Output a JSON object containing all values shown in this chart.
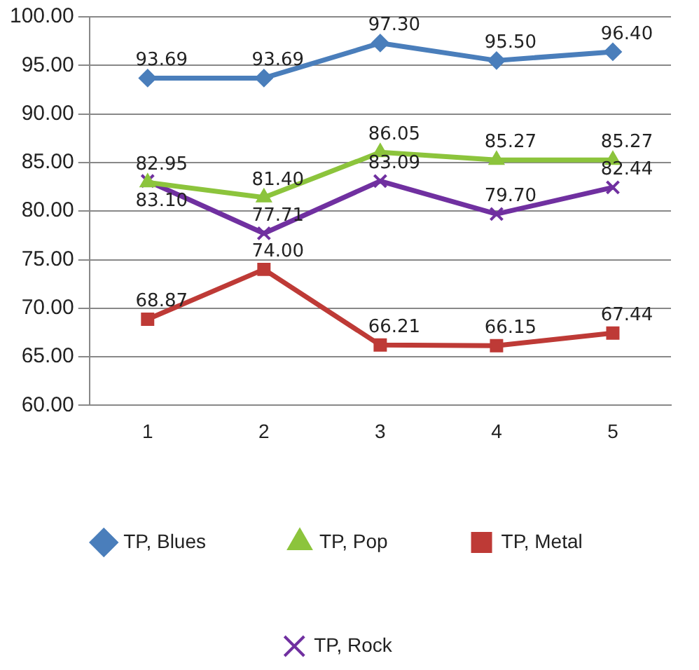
{
  "chart_data": {
    "type": "line",
    "categories": [
      "1",
      "2",
      "3",
      "4",
      "5"
    ],
    "series": [
      {
        "name": "TP, Blues",
        "color": "#4a7ebb",
        "marker": "diamond",
        "values": [
          93.69,
          93.69,
          97.3,
          95.5,
          96.4
        ],
        "value_labels": [
          "93.69",
          "93.69",
          "97.30",
          "95.50",
          "96.40"
        ]
      },
      {
        "name": "TP, Pop",
        "color": "#8cc43c",
        "marker": "triangle",
        "values": [
          82.95,
          81.4,
          86.05,
          85.27,
          85.27
        ],
        "value_labels": [
          "82.95",
          "81.40",
          "86.05",
          "85.27",
          "85.27"
        ]
      },
      {
        "name": "TP, Metal",
        "color": "#be3a36",
        "marker": "square",
        "values": [
          68.87,
          74.0,
          66.21,
          66.15,
          67.44
        ],
        "value_labels": [
          "68.87",
          "74.00",
          "66.21",
          "66.15",
          "67.44"
        ]
      },
      {
        "name": "TP, Rock",
        "color": "#7030a0",
        "marker": "cross",
        "values": [
          83.1,
          77.71,
          83.09,
          79.7,
          82.44
        ],
        "value_labels": [
          "83.10",
          "77.71",
          "83.09",
          "79.70",
          "82.44"
        ]
      }
    ],
    "ylim": [
      60,
      100
    ],
    "yticks": [
      {
        "value": 60,
        "label": "60.00"
      },
      {
        "value": 65,
        "label": "65.00"
      },
      {
        "value": 70,
        "label": "70.00"
      },
      {
        "value": 75,
        "label": "75.00"
      },
      {
        "value": 80,
        "label": "80.00"
      },
      {
        "value": 85,
        "label": "85.00"
      },
      {
        "value": 90,
        "label": "90.00"
      },
      {
        "value": 95,
        "label": "95.00"
      },
      {
        "value": 100,
        "label": "100.00"
      }
    ],
    "grid": "y",
    "legend": "bottom",
    "line_style": "solid"
  }
}
